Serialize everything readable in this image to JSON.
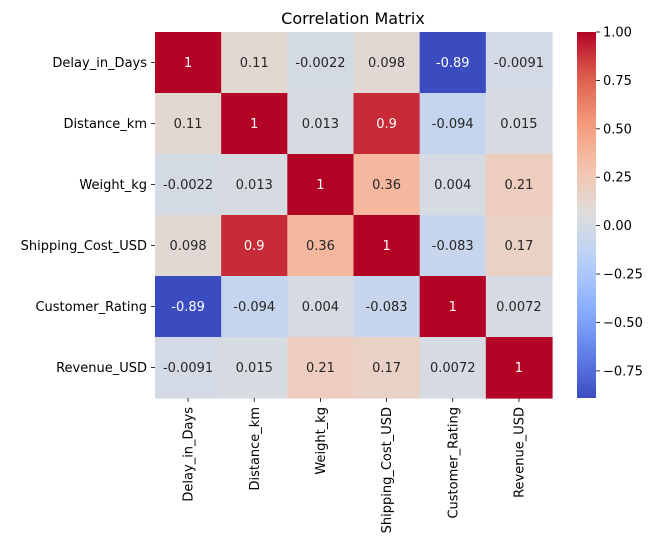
{
  "chart_data": {
    "type": "heatmap",
    "title": "Correlation Matrix",
    "xlabel": "",
    "ylabel": "",
    "x_categories": [
      "Delay_in_Days",
      "Distance_km",
      "Weight_kg",
      "Shipping_Cost_USD",
      "Customer_Rating",
      "Revenue_USD"
    ],
    "y_categories": [
      "Delay_in_Days",
      "Distance_km",
      "Weight_kg",
      "Shipping_Cost_USD",
      "Customer_Rating",
      "Revenue_USD"
    ],
    "values": [
      [
        1,
        0.11,
        -0.0022,
        0.098,
        -0.89,
        -0.0091
      ],
      [
        0.11,
        1,
        0.013,
        0.9,
        -0.094,
        0.015
      ],
      [
        -0.0022,
        0.013,
        1,
        0.36,
        0.004,
        0.21
      ],
      [
        0.098,
        0.9,
        0.36,
        1,
        -0.083,
        0.17
      ],
      [
        -0.89,
        -0.094,
        0.004,
        -0.083,
        1,
        0.0072
      ],
      [
        -0.0091,
        0.015,
        0.21,
        0.17,
        0.0072,
        1
      ]
    ],
    "cell_labels": [
      [
        "1",
        "0.11",
        "-0.0022",
        "0.098",
        "-0.89",
        "-0.0091"
      ],
      [
        "0.11",
        "1",
        "0.013",
        "0.9",
        "-0.094",
        "0.015"
      ],
      [
        "-0.0022",
        "0.013",
        "1",
        "0.36",
        "0.004",
        "0.21"
      ],
      [
        "0.098",
        "0.9",
        "0.36",
        "1",
        "-0.083",
        "0.17"
      ],
      [
        "-0.89",
        "-0.094",
        "0.004",
        "-0.083",
        "1",
        "0.0072"
      ],
      [
        "-0.0091",
        "0.015",
        "0.21",
        "0.17",
        "0.0072",
        "1"
      ]
    ],
    "colormap": "coolwarm",
    "color_range": [
      -0.89,
      1
    ],
    "colorbar_ticks": [
      1.0,
      0.75,
      0.5,
      0.25,
      0.0,
      -0.25,
      -0.5,
      -0.75
    ],
    "colorbar_tick_labels": [
      "1.00",
      "0.75",
      "0.50",
      "0.25",
      "0.00",
      "−0.25",
      "−0.50",
      "−0.75"
    ],
    "grid": false,
    "legend": "colorbar-right"
  }
}
